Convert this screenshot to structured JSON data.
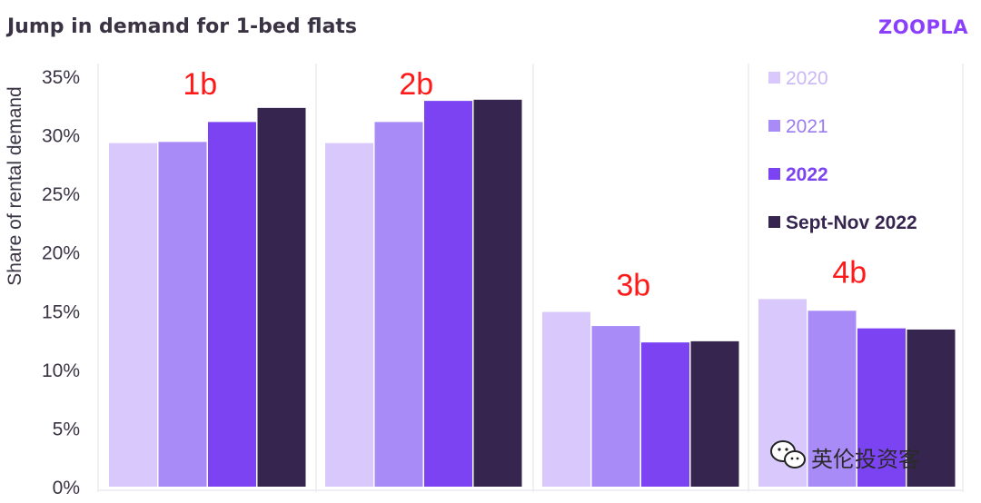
{
  "chart_data": {
    "type": "bar",
    "title": "Jump in demand for 1-bed flats",
    "brand": "ZOOPLA",
    "ylabel": "Share of rental demand",
    "xlabel": "",
    "ylim": [
      0,
      35
    ],
    "yticks": [
      "0%",
      "5%",
      "10%",
      "15%",
      "20%",
      "25%",
      "30%",
      "35%"
    ],
    "categories": [
      "1b",
      "2b",
      "3b",
      "4b"
    ],
    "series": [
      {
        "name": "2020",
        "color": "#d8c8fb",
        "values": [
          29.3,
          29.3,
          14.9,
          16.0
        ]
      },
      {
        "name": "2021",
        "color": "#a98bf7",
        "values": [
          29.4,
          31.1,
          13.7,
          15.0
        ]
      },
      {
        "name": "2022",
        "color": "#7c43f2",
        "values": [
          31.1,
          32.9,
          12.3,
          13.5
        ]
      },
      {
        "name": "Sept-Nov 2022",
        "color": "#36264f",
        "values": [
          32.3,
          33.0,
          12.4,
          13.4
        ]
      }
    ],
    "legend_position": "top-right",
    "grid": "vertical separators between category groups"
  },
  "watermark": {
    "text": "英伦投资客"
  }
}
